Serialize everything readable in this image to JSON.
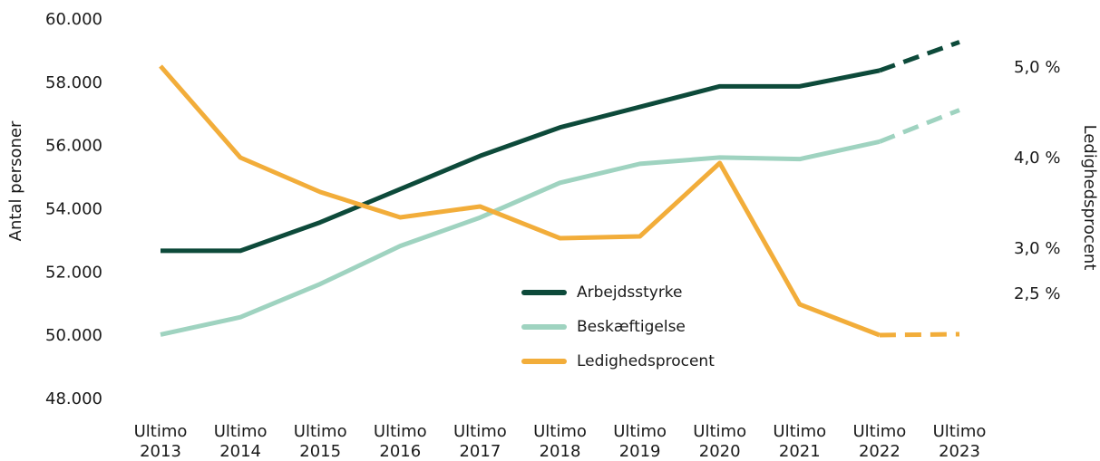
{
  "chart_data": {
    "type": "line",
    "categories": [
      "Ultimo 2013",
      "Ultimo 2014",
      "Ultimo 2015",
      "Ultimo 2016",
      "Ultimo 2017",
      "Ultimo 2018",
      "Ultimo 2019",
      "Ultimo 2020",
      "Ultimo 2021",
      "Ultimo 2022",
      "Ultimo 2023"
    ],
    "y_label": "Antal personer",
    "y2_label": "Ledighedsprocent",
    "ylim": [
      48000,
      60000
    ],
    "yticks": [
      {
        "value": 48000,
        "label": "48.000"
      },
      {
        "value": 50000,
        "label": "50.000"
      },
      {
        "value": 52000,
        "label": "52.000"
      },
      {
        "value": 54000,
        "label": "54.000"
      },
      {
        "value": 56000,
        "label": "56.000"
      },
      {
        "value": 58000,
        "label": "58.000"
      },
      {
        "value": 60000,
        "label": "60.000"
      }
    ],
    "y2lim": [
      1.34,
      5.53
    ],
    "y2ticks": [
      {
        "value": 2.5,
        "label": "2,5 %"
      },
      {
        "value": 3,
        "label": "3,0 %"
      },
      {
        "value": 4,
        "label": "4,0 %"
      },
      {
        "value": 5,
        "label": "5,0 %"
      }
    ],
    "dashed_from_index": 9,
    "series": [
      {
        "name": "Arbejdsstyrke",
        "color": "#0d4a3a",
        "values": [
          52700,
          52700,
          53600,
          54650,
          55700,
          56600,
          57250,
          57900,
          57900,
          58400,
          59300
        ]
      },
      {
        "name": "Beskæftigelse",
        "color": "#9fd3c0",
        "values": [
          50050,
          50600,
          51650,
          52850,
          53750,
          54850,
          55450,
          55650,
          55600,
          56150,
          57150
        ]
      },
      {
        "name": "Ledighedsprocent",
        "color": "#f2ad3a",
        "axis": "y2",
        "values": [
          5.02,
          4.01,
          3.63,
          3.35,
          3.47,
          3.12,
          3.14,
          3.95,
          2.39,
          2.05,
          2.06
        ]
      }
    ]
  }
}
